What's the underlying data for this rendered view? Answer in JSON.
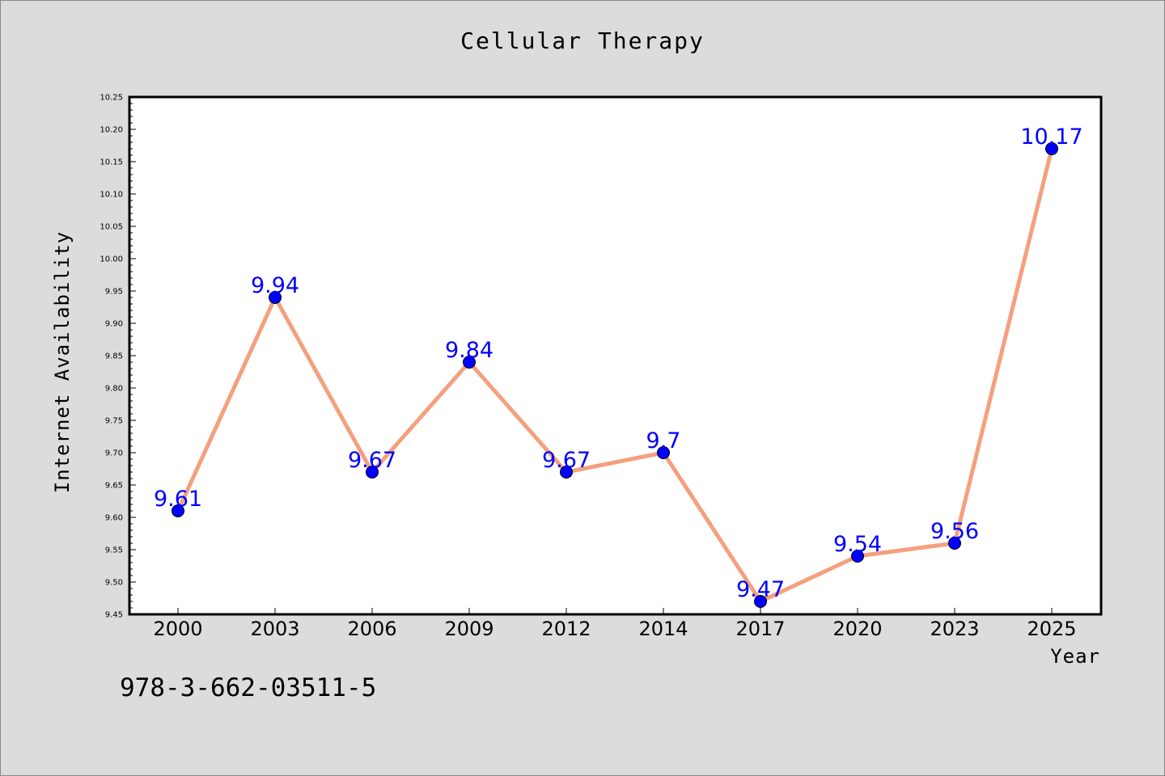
{
  "chart_data": {
    "type": "line",
    "title": "Cellular Therapy",
    "xlabel": "Year",
    "ylabel": "Internet Availability",
    "categories": [
      "2000",
      "2003",
      "2006",
      "2009",
      "2012",
      "2014",
      "2017",
      "2020",
      "2023",
      "2025"
    ],
    "series": [
      {
        "values": [
          9.61,
          9.94,
          9.67,
          9.84,
          9.67,
          9.7,
          9.47,
          9.54,
          9.56,
          10.17
        ],
        "data_labels": [
          "9.61",
          "9.94",
          "9.67",
          "9.84",
          "9.67",
          "9.7",
          "9.47",
          "9.54",
          "9.56",
          "10.17"
        ]
      }
    ],
    "ylim": [
      9.45,
      10.25
    ],
    "yticks": [
      "9.45",
      "9.50",
      "9.55",
      "9.60",
      "9.65",
      "9.70",
      "9.75",
      "9.80",
      "9.85",
      "9.90",
      "9.95",
      "10.00",
      "10.05",
      "10.10",
      "10.15",
      "10.20",
      "10.25"
    ],
    "grid": false,
    "legend": false,
    "line_color": "#f4a07e",
    "marker_color": "#0000ff",
    "label_color": "#0000ff"
  },
  "footer": {
    "code": "978-3-662-03511-5"
  },
  "background_color": "#dcdcdc"
}
